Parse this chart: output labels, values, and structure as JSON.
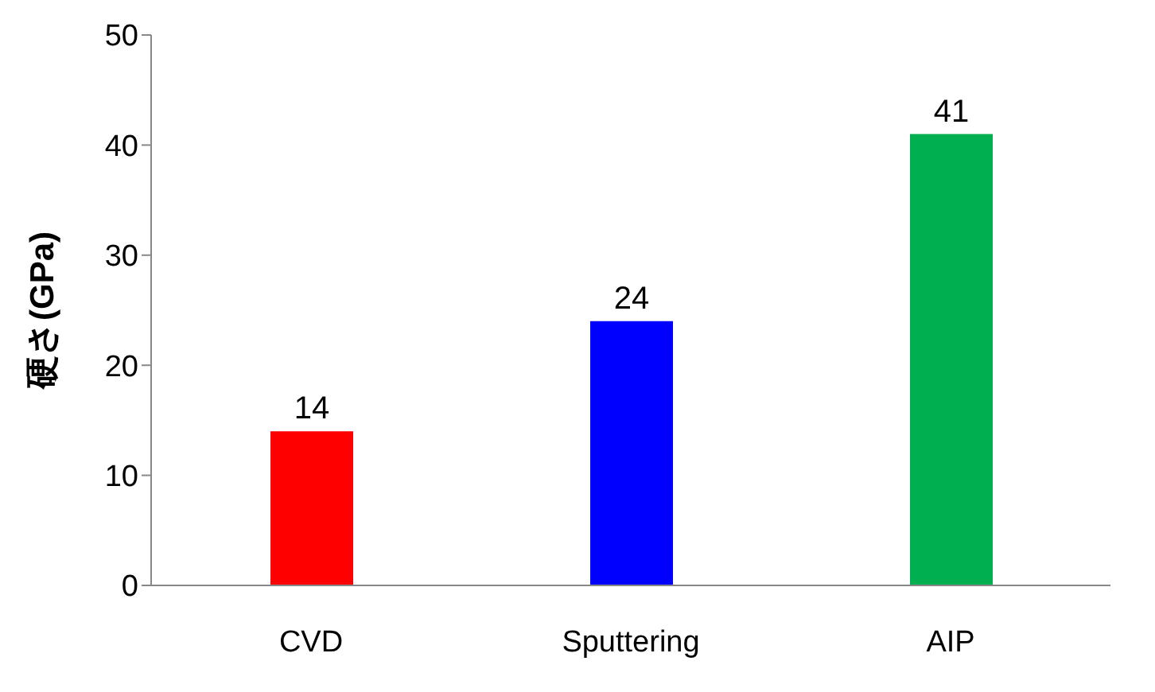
{
  "chart_data": {
    "type": "bar",
    "ylabel": "硬さ(GPa)",
    "categories": [
      "CVD",
      "Sputtering",
      "AIP"
    ],
    "values": [
      14,
      24,
      41
    ],
    "colors": [
      "#ff0000",
      "#0000ff",
      "#00b050"
    ],
    "ylim": [
      0,
      50
    ],
    "yticks": [
      0,
      10,
      20,
      30,
      40,
      50
    ],
    "data_labels": true,
    "grid": false
  }
}
